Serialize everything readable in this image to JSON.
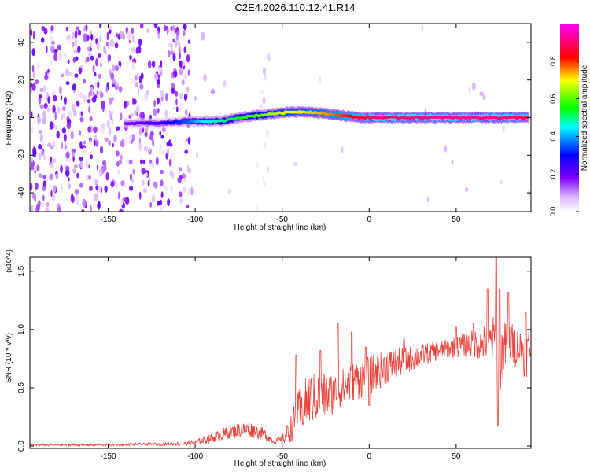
{
  "page": {
    "title": "C2E4.2026.110.12.41.R14"
  },
  "colorbar": {
    "label": "Normalized spectral amplitude",
    "ticks": [
      0.0,
      0.2,
      0.4,
      0.6,
      0.8
    ],
    "tick_labels": [
      "0.0",
      "0.2",
      "0.4",
      "0.6",
      "0.8"
    ],
    "range": [
      0,
      1
    ],
    "colormap": [
      "#ffffff",
      "#8000ff",
      "#0000ff",
      "#00ffff",
      "#00ff00",
      "#ffff00",
      "#ff0000",
      "#ff00ff"
    ]
  },
  "chart_data": [
    {
      "type": "heatmap",
      "title": "C2E4.2026.110.12.41.R14",
      "xlabel": "Height of straight line (km)",
      "ylabel": "Frequency (Hz)",
      "xlim": [
        -195,
        93
      ],
      "ylim": [
        -50,
        50
      ],
      "xticks": [
        -150,
        -100,
        -50,
        0,
        50
      ],
      "xtick_labels": [
        "-150",
        "-100",
        "-50",
        "0",
        "50"
      ],
      "yticks": [
        -40,
        -20,
        0,
        20,
        40
      ],
      "ytick_labels": [
        "-40",
        "-20",
        "0",
        "20",
        "40"
      ],
      "zlim": [
        0,
        1
      ],
      "ridge": {
        "description_points_x": [
          -135,
          -120,
          -105,
          -95,
          -85,
          -75,
          -65,
          -55,
          -45,
          -35,
          -25,
          -15,
          -5,
          5,
          20,
          40,
          60,
          80,
          92
        ],
        "description_points_freq": [
          -3,
          -3,
          -2,
          -2,
          -2,
          0,
          1,
          2,
          3,
          3,
          2,
          1,
          0,
          0,
          0,
          0,
          0,
          0,
          0
        ],
        "description_points_amp": [
          0.2,
          0.25,
          0.35,
          0.45,
          0.5,
          0.55,
          0.6,
          0.65,
          0.7,
          0.72,
          0.75,
          0.8,
          0.85,
          0.9,
          0.9,
          0.92,
          0.92,
          0.9,
          0.85
        ]
      },
      "grid": false
    },
    {
      "type": "line",
      "xlabel": "Height of straight line (km)",
      "ylabel": "SNR (10 * v/v)",
      "y_multiplier_label": "(x10^4)",
      "xlim": [
        -195,
        93
      ],
      "ylim": [
        -0.02,
        1.62
      ],
      "xticks": [
        -150,
        -100,
        -50,
        0,
        50
      ],
      "xtick_labels": [
        "-150",
        "-100",
        "-50",
        "0",
        "50"
      ],
      "yticks": [
        0.0,
        0.5,
        1.0,
        1.5
      ],
      "ytick_labels": [
        "0.0",
        "0.5",
        "1.0",
        "1.5"
      ],
      "color": "#e8403a",
      "grid": false,
      "series_envelope": {
        "x": [
          -195,
          -150,
          -105,
          -100,
          -90,
          -80,
          -70,
          -60,
          -55,
          -50,
          -45,
          -40,
          -35,
          -30,
          -20,
          -10,
          0,
          10,
          20,
          30,
          40,
          50,
          60,
          65,
          70,
          73,
          75,
          80,
          85,
          90,
          93
        ],
        "mean": [
          0.01,
          0.01,
          0.02,
          0.03,
          0.07,
          0.12,
          0.15,
          0.1,
          0.04,
          0.05,
          0.15,
          0.3,
          0.4,
          0.42,
          0.45,
          0.55,
          0.6,
          0.68,
          0.73,
          0.78,
          0.82,
          0.85,
          0.88,
          0.88,
          0.9,
          0.92,
          0.75,
          0.9,
          0.85,
          0.8,
          0.85
        ],
        "spread": [
          0.01,
          0.01,
          0.015,
          0.02,
          0.04,
          0.06,
          0.07,
          0.05,
          0.02,
          0.04,
          0.12,
          0.2,
          0.22,
          0.22,
          0.18,
          0.17,
          0.17,
          0.15,
          0.12,
          0.1,
          0.08,
          0.09,
          0.12,
          0.15,
          0.18,
          0.25,
          0.3,
          0.18,
          0.18,
          0.22,
          0.2
        ],
        "spikes": [
          [
            -42,
            0.78
          ],
          [
            -28,
            0.82
          ],
          [
            -18,
            1.05
          ],
          [
            -10,
            0.98
          ],
          [
            -2,
            0.85
          ],
          [
            0,
            0.35
          ],
          [
            20,
            0.92
          ],
          [
            50,
            1.02
          ],
          [
            60,
            1.05
          ],
          [
            68,
            1.35
          ],
          [
            73,
            1.62
          ],
          [
            74,
            0.18
          ],
          [
            75,
            1.35
          ],
          [
            80,
            1.32
          ],
          [
            90,
            1.15
          ]
        ]
      }
    }
  ]
}
